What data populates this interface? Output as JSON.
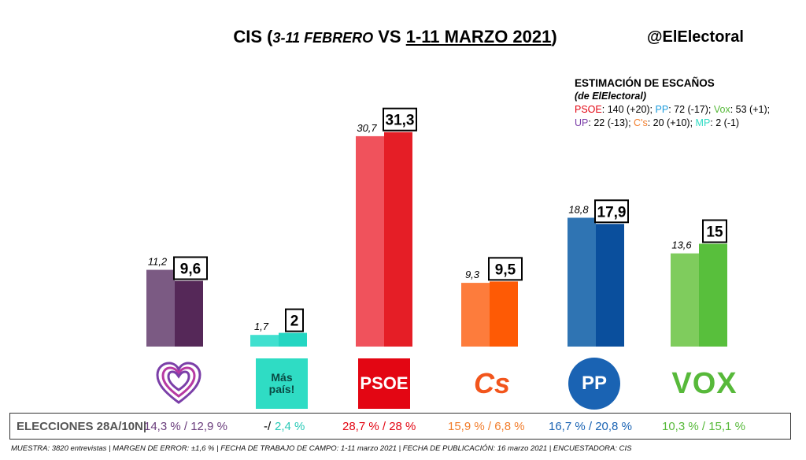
{
  "header": {
    "title_prefix": "CIS (",
    "title_feb": "3-11 FEBRERO",
    "title_vs": " VS ",
    "title_mar": "1-11 MARZO 2021",
    "title_suffix": ")",
    "handle": "@ElElectoral"
  },
  "seats": {
    "heading": "ESTIMACIÓN DE ESCAÑOS",
    "source": "(de ElElectoral)",
    "line1": [
      {
        "party": "PSOE",
        "rest": ": 140 (+20); ",
        "color": "#e30613"
      },
      {
        "party": "PP",
        "rest": ": 72 (-17); ",
        "color": "#1a9bdc"
      },
      {
        "party": "Vox",
        "rest": ": 53 (+1);",
        "color": "#57b93a"
      }
    ],
    "line2": [
      {
        "party": "UP",
        "rest": ": 22 (-13); ",
        "color": "#7b3fa8"
      },
      {
        "party": "C's",
        "rest": ": 20 (+10); ",
        "color": "#f27d2b"
      },
      {
        "party": "MP",
        "rest": ": 2 (-1)",
        "color": "#2fdcc4"
      }
    ]
  },
  "chart_data": {
    "type": "bar",
    "categories": [
      "UP",
      "Más País",
      "PSOE",
      "Cs",
      "PP",
      "VOX"
    ],
    "series": [
      {
        "name": "3-11 FEBRERO",
        "values": [
          11.2,
          1.7,
          30.7,
          9.3,
          18.8,
          13.6
        ],
        "labels": [
          "11,2",
          "1,7",
          "30,7",
          "9,3",
          "18,8",
          "13,6"
        ]
      },
      {
        "name": "1-11 MARZO 2021",
        "values": [
          9.6,
          2,
          31.3,
          9.5,
          17.9,
          15
        ],
        "labels": [
          "9,6",
          "2",
          "31,3",
          "9,5",
          "17,9",
          "15"
        ]
      }
    ],
    "colors_feb": [
      "#7b5a83",
      "#40e0cf",
      "#f0525c",
      "#fd7c3c",
      "#2f74b3",
      "#7fcc5d"
    ],
    "colors_mar": [
      "#552858",
      "#24d6c2",
      "#e51e26",
      "#fe5a05",
      "#0a4f9d",
      "#58bf3c"
    ],
    "ylim": [
      0,
      33
    ],
    "title": "CIS (3-11 FEBRERO VS 1-11 MARZO 2021)"
  },
  "logos": {
    "mas_pais": "Más\npaís!",
    "psoe": "PSOE",
    "cs": "Cs",
    "pp": "PP",
    "vox": "VOX"
  },
  "results": {
    "label": "ELECCIONES 28A/10N|",
    "values": [
      {
        "text": "14,3 % / 12,9 %",
        "color": "#6a3d7c"
      },
      {
        "text": "-/",
        "color": "#000000"
      },
      {
        "text": "2,4 %",
        "color": "#27c9b6"
      },
      {
        "text": "28,7  % / 28 %",
        "color": "#e30613"
      },
      {
        "text": "15,9 % / 6,8 %",
        "color": "#f27d2b"
      },
      {
        "text": "16,7 % / 20,8 %",
        "color": "#1a63b3"
      },
      {
        "text": "10,3 % / 15,1 %",
        "color": "#57b93a"
      }
    ]
  },
  "footer": "MUESTRA: 3820 entrevistas  |  MARGEN DE ERROR: ±1,6 %  |  FECHA DE TRABAJO DE CAMPO: 1-11 marzo 2021  |  FECHA DE PUBLICACIÓN: 16 marzo 2021  |  ENCUESTADORA: CIS"
}
